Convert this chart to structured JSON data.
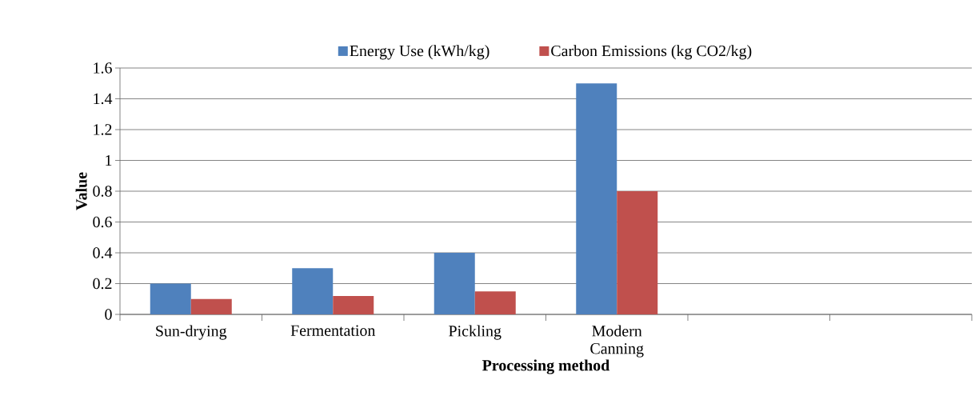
{
  "chart_data": {
    "type": "bar",
    "xlabel": "Processing method",
    "ylabel": "Value",
    "categories": [
      "Sun-drying",
      "Fermentation",
      "Pickling",
      "Modern Canning",
      null,
      null
    ],
    "series": [
      {
        "name": "Energy Use (kWh/kg)",
        "color": "#4f81bd",
        "values": [
          0.2,
          0.3,
          0.4,
          1.5,
          null,
          null
        ]
      },
      {
        "name": "Carbon Emissions (kg CO2/kg)",
        "color": "#c0504d",
        "values": [
          0.1,
          0.12,
          0.15,
          0.8,
          null,
          null
        ]
      }
    ],
    "ylim": [
      0,
      1.6
    ],
    "yticks": [
      0,
      0.2,
      0.4,
      0.6,
      0.8,
      1,
      1.2,
      1.4,
      1.6
    ],
    "grid": "y",
    "legend": "top"
  }
}
